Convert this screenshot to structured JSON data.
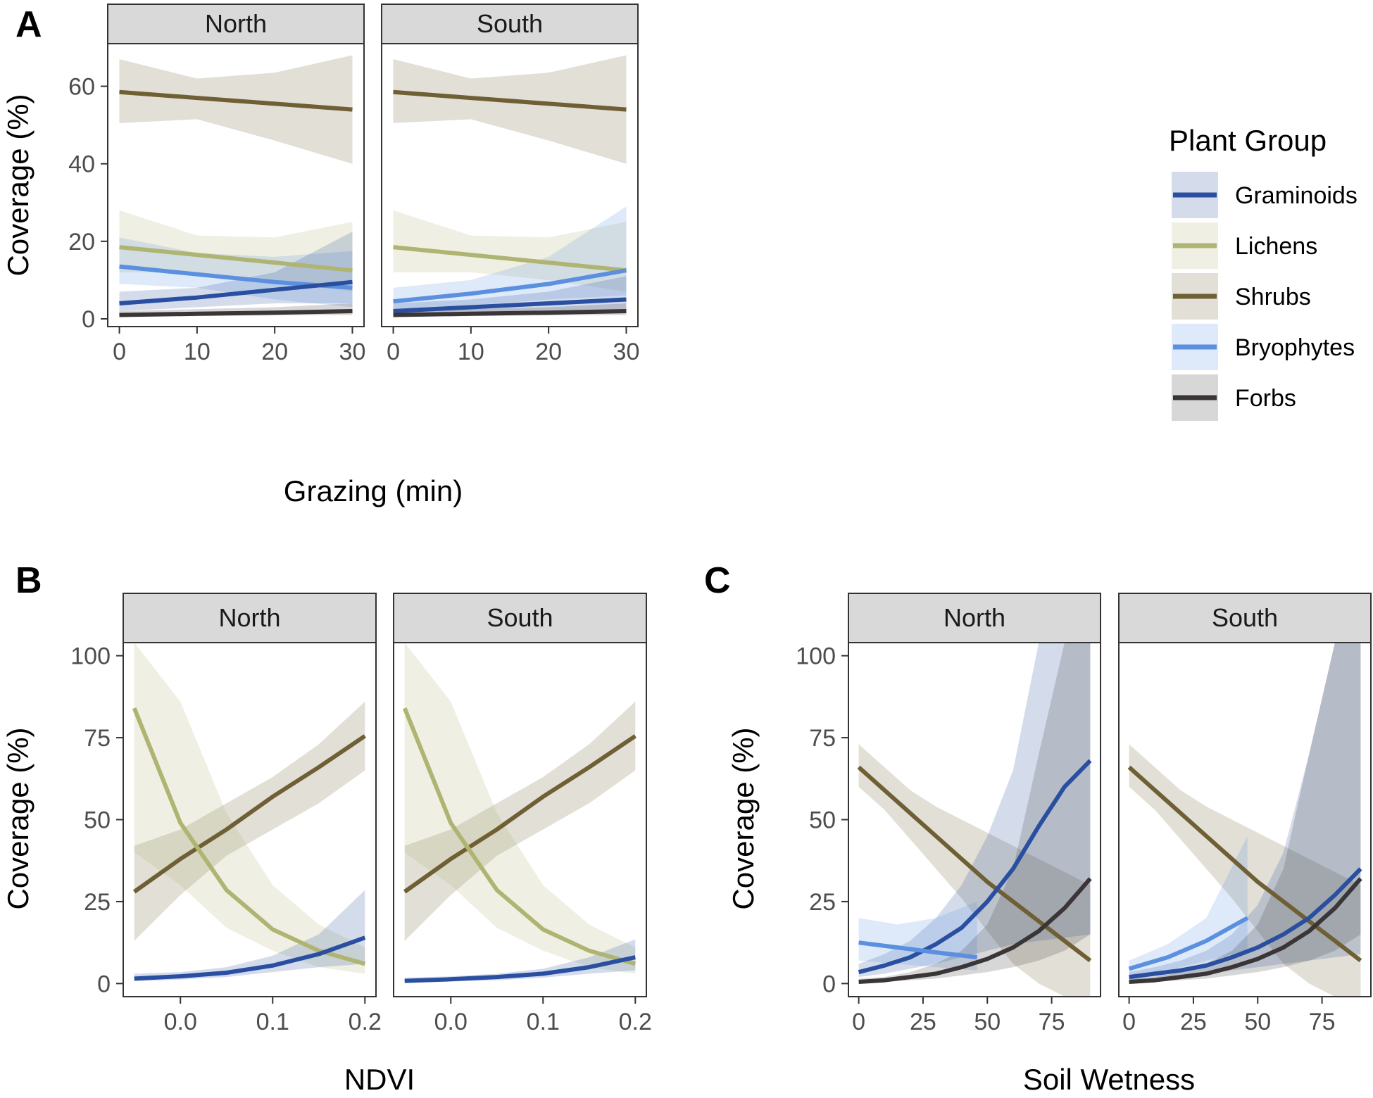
{
  "colors": {
    "Graminoids": "#2a4fa0",
    "Lichens": "#b0b473",
    "Shrubs": "#6f5f34",
    "Bryophytes": "#5b8fdf",
    "Forbs": "#3a3536",
    "strip_fill": "#d9d9d9"
  },
  "legend": {
    "title": "Plant Group",
    "items": [
      "Graminoids",
      "Lichens",
      "Shrubs",
      "Bryophytes",
      "Forbs"
    ]
  },
  "chart_data": [
    {
      "type": "line",
      "panel_label": "A",
      "facets": [
        "North",
        "South"
      ],
      "xlabel": "Grazing (min)",
      "ylabel": "Coverage (%)",
      "xlim": [
        -1.5,
        31.5
      ],
      "ylim": [
        -2,
        71
      ],
      "xticks": [
        0,
        10,
        20,
        30
      ],
      "xtick_labels": [
        "0",
        "10",
        "20",
        "30"
      ],
      "yticks": [
        0,
        20,
        40,
        60
      ],
      "ytick_labels": [
        "0",
        "20",
        "40",
        "60"
      ],
      "grid": false,
      "panels": {
        "North": [
          {
            "name": "Shrubs",
            "x": [
              0,
              10,
              20,
              30
            ],
            "y": [
              58.5,
              57,
              55.5,
              54
            ],
            "lower": [
              50.5,
              51.5,
              46,
              40
            ],
            "upper": [
              67,
              62,
              63.5,
              68
            ]
          },
          {
            "name": "Lichens",
            "x": [
              0,
              10,
              20,
              30
            ],
            "y": [
              18.5,
              16.5,
              14.5,
              12.5
            ],
            "lower": [
              12,
              12,
              10,
              7
            ],
            "upper": [
              28,
              21.5,
              21,
              25
            ]
          },
          {
            "name": "Bryophytes",
            "x": [
              0,
              10,
              20,
              30
            ],
            "y": [
              13.5,
              11.5,
              9.5,
              8
            ],
            "lower": [
              9,
              8,
              5,
              3
            ],
            "upper": [
              21,
              17,
              16,
              17.5
            ]
          },
          {
            "name": "Graminoids",
            "x": [
              0,
              10,
              20,
              30
            ],
            "y": [
              4,
              5.5,
              7.5,
              9.5
            ],
            "lower": [
              2,
              3,
              4,
              4
            ],
            "upper": [
              7,
              8,
              12,
              22.5
            ]
          },
          {
            "name": "Forbs",
            "x": [
              0,
              10,
              20,
              30
            ],
            "y": [
              1,
              1.3,
              1.6,
              2
            ],
            "lower": [
              0.5,
              0.7,
              0.9,
              1
            ],
            "upper": [
              2,
              2.5,
              3,
              4
            ]
          }
        ],
        "South": [
          {
            "name": "Shrubs",
            "x": [
              0,
              10,
              20,
              30
            ],
            "y": [
              58.5,
              57,
              55.5,
              54
            ],
            "lower": [
              50.5,
              51.5,
              46,
              40
            ],
            "upper": [
              67,
              62,
              63.5,
              68
            ]
          },
          {
            "name": "Lichens",
            "x": [
              0,
              10,
              20,
              30
            ],
            "y": [
              18.5,
              16.5,
              14.5,
              12.5
            ],
            "lower": [
              12,
              12,
              10,
              7
            ],
            "upper": [
              28,
              21.5,
              21,
              25
            ]
          },
          {
            "name": "Bryophytes",
            "x": [
              0,
              10,
              20,
              30
            ],
            "y": [
              4.5,
              6.5,
              9,
              12.5
            ],
            "lower": [
              2.5,
              3.5,
              5,
              6
            ],
            "upper": [
              8,
              10,
              16,
              29
            ]
          },
          {
            "name": "Graminoids",
            "x": [
              0,
              10,
              20,
              30
            ],
            "y": [
              2,
              3,
              4,
              5
            ],
            "lower": [
              1,
              1.5,
              2,
              2
            ],
            "upper": [
              4,
              5,
              7,
              11
            ]
          },
          {
            "name": "Forbs",
            "x": [
              0,
              10,
              20,
              30
            ],
            "y": [
              1,
              1.3,
              1.6,
              2
            ],
            "lower": [
              0.5,
              0.7,
              0.9,
              1
            ],
            "upper": [
              2,
              2.5,
              3,
              4
            ]
          }
        ]
      }
    },
    {
      "type": "line",
      "panel_label": "B",
      "facets": [
        "North",
        "South"
      ],
      "xlabel": "NDVI",
      "ylabel": "Coverage (%)",
      "xlim": [
        -0.062,
        0.212
      ],
      "ylim": [
        -4,
        104
      ],
      "xticks": [
        0.0,
        0.1,
        0.2
      ],
      "xtick_labels": [
        "0.0",
        "0.1",
        "0.2"
      ],
      "yticks": [
        0,
        25,
        50,
        75,
        100
      ],
      "ytick_labels": [
        "0",
        "25",
        "50",
        "75",
        "100"
      ],
      "grid": false,
      "panels": {
        "North": [
          {
            "name": "Shrubs",
            "x": [
              -0.05,
              0.0,
              0.05,
              0.1,
              0.15,
              0.2
            ],
            "y": [
              28,
              38,
              47,
              57,
              66,
              75.5
            ],
            "lower": [
              13,
              27,
              39,
              47,
              55,
              65
            ],
            "upper": [
              42,
              47,
              55,
              63,
              73,
              86
            ]
          },
          {
            "name": "Lichens",
            "x": [
              -0.05,
              0.0,
              0.05,
              0.1,
              0.15,
              0.2
            ],
            "y": [
              84,
              49,
              28.5,
              16.5,
              10,
              6
            ],
            "lower": [
              40,
              30,
              17,
              10,
              5,
              3
            ],
            "upper": [
              104,
              86,
              52,
              30,
              18,
              11
            ]
          },
          {
            "name": "Graminoids",
            "x": [
              -0.05,
              0.0,
              0.05,
              0.1,
              0.15,
              0.2
            ],
            "y": [
              1.5,
              2.2,
              3.3,
              5.5,
              9,
              14
            ],
            "lower": [
              0.7,
              1.2,
              2,
              3.5,
              5,
              6
            ],
            "upper": [
              3,
              3.5,
              5,
              8.5,
              15,
              28.5
            ]
          }
        ],
        "South": [
          {
            "name": "Shrubs",
            "x": [
              -0.05,
              0.0,
              0.05,
              0.1,
              0.15,
              0.2
            ],
            "y": [
              28,
              38,
              47,
              57,
              66,
              75.5
            ],
            "lower": [
              13,
              27,
              39,
              47,
              55,
              65
            ],
            "upper": [
              42,
              47,
              55,
              63,
              73,
              86
            ]
          },
          {
            "name": "Lichens",
            "x": [
              -0.05,
              0.0,
              0.05,
              0.1,
              0.15,
              0.2
            ],
            "y": [
              84,
              49,
              28.5,
              16.5,
              10,
              6
            ],
            "lower": [
              40,
              30,
              17,
              10,
              5,
              3
            ],
            "upper": [
              104,
              86,
              52,
              30,
              18,
              11
            ]
          },
          {
            "name": "Graminoids",
            "x": [
              -0.05,
              0.0,
              0.05,
              0.1,
              0.15,
              0.2
            ],
            "y": [
              0.8,
              1.3,
              2,
              3,
              5,
              8
            ],
            "lower": [
              0.3,
              0.6,
              1,
              1.8,
              3,
              4
            ],
            "upper": [
              1.8,
              2.2,
              3,
              4.5,
              8,
              13.5
            ]
          }
        ]
      }
    },
    {
      "type": "line",
      "panel_label": "C",
      "facets": [
        "North",
        "South"
      ],
      "xlabel": "Soil Wetness",
      "ylabel": "Coverage (%)",
      "xlim": [
        -4,
        94
      ],
      "ylim": [
        -4,
        104
      ],
      "xticks": [
        0,
        25,
        50,
        75
      ],
      "xtick_labels": [
        "0",
        "25",
        "50",
        "75"
      ],
      "yticks": [
        0,
        25,
        50,
        75,
        100
      ],
      "ytick_labels": [
        "0",
        "25",
        "50",
        "75",
        "100"
      ],
      "grid": false,
      "panels": {
        "North": [
          {
            "name": "Shrubs",
            "x": [
              0,
              10,
              20,
              30,
              40,
              50,
              60,
              70,
              80,
              90
            ],
            "y": [
              66,
              59,
              52,
              45,
              38,
              31,
              25,
              19,
              13,
              7
            ],
            "lower": [
              60,
              53,
              44,
              35,
              26,
              16,
              6,
              0,
              -4,
              -4
            ],
            "upper": [
              73,
              66,
              59,
              54,
              50,
              46,
              42,
              38,
              34,
              30
            ]
          },
          {
            "name": "Graminoids",
            "x": [
              0,
              10,
              20,
              30,
              40,
              50,
              60,
              70,
              80,
              90
            ],
            "y": [
              3.5,
              5.5,
              8,
              12,
              17,
              25,
              35,
              48,
              60,
              68
            ],
            "lower": [
              2,
              3,
              4.5,
              6,
              8,
              10,
              12,
              13,
              14,
              15
            ],
            "upper": [
              6,
              9,
              13,
              20,
              30,
              45,
              65,
              104,
              104,
              104
            ]
          },
          {
            "name": "Bryophytes",
            "x": [
              0,
              15,
              30,
              46
            ],
            "y": [
              12.5,
              11,
              9.5,
              8
            ],
            "lower": [
              7,
              6,
              5,
              4
            ],
            "upper": [
              20,
              18,
              20,
              25
            ]
          },
          {
            "name": "Forbs",
            "x": [
              0,
              10,
              20,
              30,
              40,
              50,
              60,
              70,
              80,
              90
            ],
            "y": [
              0.5,
              1,
              2,
              3,
              5,
              7.5,
              11,
              16,
              23,
              32
            ],
            "lower": [
              0.2,
              0.5,
              1,
              1.5,
              2.5,
              3.5,
              5,
              7,
              10,
              15
            ],
            "upper": [
              1.5,
              2,
              3.5,
              6,
              10,
              18,
              35,
              70,
              104,
              104
            ]
          }
        ],
        "South": [
          {
            "name": "Shrubs",
            "x": [
              0,
              10,
              20,
              30,
              40,
              50,
              60,
              70,
              80,
              90
            ],
            "y": [
              66,
              59,
              52,
              45,
              38,
              31,
              25,
              19,
              13,
              7
            ],
            "lower": [
              60,
              53,
              44,
              35,
              26,
              16,
              6,
              0,
              -4,
              -4
            ],
            "upper": [
              73,
              66,
              59,
              54,
              50,
              46,
              42,
              38,
              34,
              30
            ]
          },
          {
            "name": "Graminoids",
            "x": [
              0,
              10,
              20,
              30,
              40,
              50,
              60,
              70,
              80,
              90
            ],
            "y": [
              2,
              3,
              4,
              5.5,
              8,
              11,
              15,
              20,
              27,
              35
            ],
            "lower": [
              1,
              1.5,
              2,
              3,
              4,
              5,
              6,
              7,
              8,
              9
            ],
            "upper": [
              3.5,
              5,
              7,
              10,
              15,
              24,
              40,
              70,
              104,
              104
            ]
          },
          {
            "name": "Bryophytes",
            "x": [
              0,
              15,
              30,
              46
            ],
            "y": [
              4.5,
              8,
              13,
              20
            ],
            "lower": [
              2.5,
              4,
              7,
              10
            ],
            "upper": [
              7,
              12,
              20,
              45
            ]
          },
          {
            "name": "Forbs",
            "x": [
              0,
              10,
              20,
              30,
              40,
              50,
              60,
              70,
              80,
              90
            ],
            "y": [
              0.5,
              1,
              2,
              3,
              5,
              7.5,
              11,
              16,
              23,
              32
            ],
            "lower": [
              0.2,
              0.5,
              1,
              1.5,
              2.5,
              3.5,
              5,
              7,
              10,
              15
            ],
            "upper": [
              1.5,
              2,
              3.5,
              6,
              10,
              18,
              35,
              70,
              104,
              104
            ]
          }
        ]
      }
    }
  ]
}
